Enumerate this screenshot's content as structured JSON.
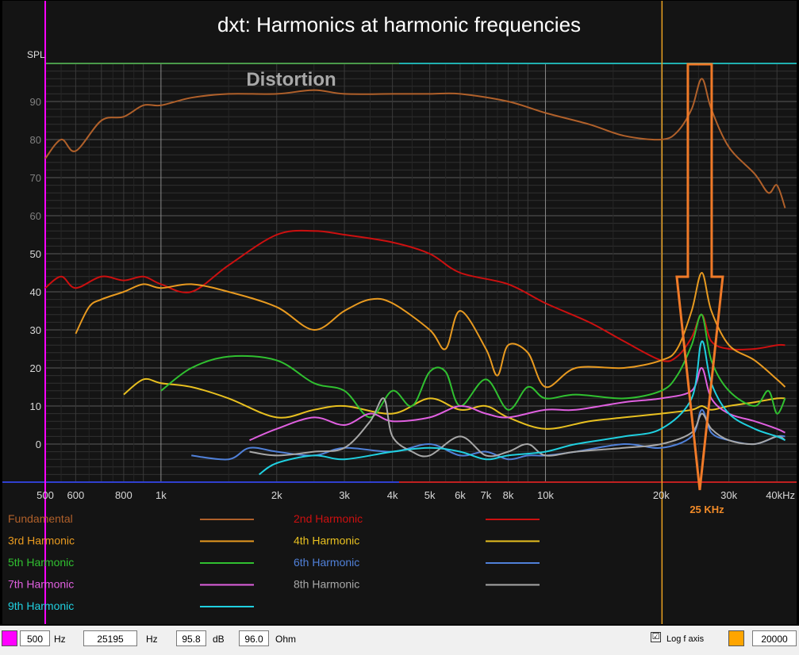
{
  "chart_data": {
    "type": "line",
    "title": "dxt: Harmonics at harmonic frequencies",
    "ylabel": "SPL",
    "xlabel": "",
    "annotation": "Distortion",
    "marker_annotation": "25 KHz",
    "x_scale": "log",
    "xlim": [
      500,
      45000
    ],
    "ylim": [
      -10,
      100
    ],
    "x_ticks": [
      {
        "v": 500,
        "label": "500"
      },
      {
        "v": 600,
        "label": "600"
      },
      {
        "v": 800,
        "label": "800"
      },
      {
        "v": 1000,
        "label": "1k"
      },
      {
        "v": 2000,
        "label": "2k"
      },
      {
        "v": 3000,
        "label": "3k"
      },
      {
        "v": 4000,
        "label": "4k"
      },
      {
        "v": 5000,
        "label": "5k"
      },
      {
        "v": 6000,
        "label": "6k"
      },
      {
        "v": 7000,
        "label": "7k"
      },
      {
        "v": 8000,
        "label": "8k"
      },
      {
        "v": 10000,
        "label": "10k"
      },
      {
        "v": 20000,
        "label": "20k"
      },
      {
        "v": 30000,
        "label": "30k"
      },
      {
        "v": 40000,
        "label": "40kHz"
      }
    ],
    "y_ticks": [
      0,
      10,
      20,
      30,
      40,
      50,
      60,
      70,
      80,
      90
    ],
    "cursor_x": 500,
    "cursor2_x": 20000,
    "series": [
      {
        "name": "Fundamental",
        "color": "#b0602a",
        "x": [
          500,
          550,
          600,
          700,
          800,
          900,
          1000,
          1200,
          1500,
          2000,
          2500,
          3000,
          4000,
          5000,
          6000,
          8000,
          10000,
          13000,
          16000,
          20000,
          22000,
          24000,
          25500,
          27000,
          30000,
          35000,
          38000,
          40000,
          42000
        ],
        "y": [
          75,
          80,
          77,
          85,
          86,
          89,
          89,
          91,
          92,
          92,
          93,
          92,
          92,
          92,
          92,
          90,
          87,
          84,
          81,
          80,
          82,
          88,
          96,
          88,
          78,
          71,
          66,
          68,
          62
        ]
      },
      {
        "name": "2nd Harmonic",
        "color": "#cc1010",
        "x": [
          500,
          550,
          600,
          700,
          800,
          900,
          1000,
          1200,
          1500,
          2000,
          2500,
          3000,
          4000,
          5000,
          6000,
          8000,
          10000,
          13000,
          16000,
          20000,
          22000,
          24000,
          25500,
          27000,
          30000,
          35000,
          40000,
          42000
        ],
        "y": [
          41,
          44,
          41,
          44,
          43,
          44,
          42,
          40,
          47,
          55,
          56,
          55,
          53,
          50,
          45,
          42,
          37,
          32,
          27,
          22,
          23,
          28,
          34,
          27,
          25,
          25,
          26,
          26
        ]
      },
      {
        "name": "3rd Harmonic",
        "color": "#e89a20",
        "x": [
          600,
          650,
          700,
          800,
          900,
          1000,
          1200,
          1500,
          2000,
          2500,
          3000,
          3500,
          4000,
          5000,
          5500,
          6000,
          7000,
          7500,
          8000,
          9000,
          10000,
          12000,
          16000,
          20000,
          22000,
          24000,
          25500,
          27000,
          30000,
          35000,
          40000,
          42000
        ],
        "y": [
          29,
          36,
          38,
          40,
          42,
          41,
          42,
          40,
          36,
          30,
          35,
          38,
          37,
          30,
          25,
          35,
          25,
          18,
          26,
          24,
          15,
          20,
          20,
          22,
          25,
          35,
          45,
          35,
          26,
          22,
          17,
          15
        ]
      },
      {
        "name": "4th Harmonic",
        "color": "#e8c020",
        "x": [
          800,
          900,
          1000,
          1200,
          1500,
          2000,
          2500,
          3000,
          4000,
          5000,
          6000,
          7000,
          8000,
          10000,
          13000,
          16000,
          20000,
          24000,
          25500,
          27000,
          30000,
          35000,
          40000,
          42000
        ],
        "y": [
          13,
          17,
          16,
          15,
          12,
          7,
          9,
          10,
          8,
          12,
          9,
          10,
          7,
          4,
          6,
          7,
          8,
          9,
          10,
          9,
          10,
          11,
          12,
          12
        ]
      },
      {
        "name": "5th Harmonic",
        "color": "#30c030",
        "x": [
          1000,
          1200,
          1500,
          2000,
          2500,
          3000,
          3500,
          4000,
          4500,
          5000,
          5500,
          6000,
          7000,
          8000,
          9000,
          10000,
          12000,
          16000,
          20000,
          22000,
          24000,
          25500,
          27000,
          30000,
          35000,
          38000,
          40000,
          42000
        ],
        "y": [
          14,
          20,
          23,
          22,
          16,
          14,
          7,
          14,
          10,
          19,
          19,
          10,
          17,
          9,
          15,
          12,
          13,
          12,
          14,
          18,
          26,
          34,
          22,
          14,
          10,
          14,
          8,
          12
        ]
      },
      {
        "name": "6th Harmonic",
        "color": "#5080d8",
        "x": [
          1200,
          1500,
          1700,
          2000,
          2500,
          3000,
          4000,
          5000,
          6000,
          7000,
          8000,
          9000,
          10000,
          12000,
          16000,
          20000,
          24000,
          25500,
          27000,
          30000,
          35000,
          40000,
          42000
        ],
        "y": [
          -3,
          -4,
          -1,
          -2,
          -3,
          -1,
          -2,
          0,
          -3,
          -2,
          -4,
          -3,
          -3,
          -2,
          0,
          -1,
          2,
          9,
          3,
          1,
          0,
          2,
          2
        ]
      },
      {
        "name": "7th Harmonic",
        "color": "#e060e0",
        "x": [
          1700,
          2000,
          2500,
          3000,
          3500,
          4000,
          5000,
          6000,
          7000,
          8000,
          10000,
          12000,
          16000,
          20000,
          24000,
          25500,
          27000,
          30000,
          35000,
          40000,
          42000
        ],
        "y": [
          1,
          4,
          7,
          5,
          8,
          6,
          7,
          10,
          8,
          7,
          9,
          9,
          11,
          12,
          14,
          20,
          12,
          8,
          6,
          4,
          3
        ]
      },
      {
        "name": "8th Harmonic",
        "color": "#a8a8a8",
        "x": [
          1700,
          2000,
          2500,
          3000,
          3500,
          3800,
          4000,
          4500,
          5000,
          6000,
          7000,
          8000,
          9000,
          10000,
          12000,
          16000,
          20000,
          24000,
          25500,
          27000,
          30000,
          35000,
          40000,
          42000
        ],
        "y": [
          -2,
          -3,
          -2,
          -1,
          6,
          12,
          2,
          -2,
          -3,
          2,
          -3,
          -2,
          0,
          -3,
          -2,
          -1,
          0,
          3,
          8,
          4,
          1,
          0,
          2,
          1
        ]
      },
      {
        "name": "9th Harmonic",
        "color": "#20d0e0",
        "x": [
          1800,
          2000,
          2500,
          3000,
          4000,
          5000,
          6000,
          7000,
          8000,
          10000,
          12000,
          16000,
          20000,
          24000,
          25500,
          27000,
          30000,
          35000,
          40000,
          42000
        ],
        "y": [
          -8,
          -5,
          -3,
          -4,
          -2,
          -1,
          -2,
          -4,
          -3,
          -2,
          0,
          2,
          4,
          12,
          27,
          16,
          8,
          4,
          2,
          1
        ]
      }
    ]
  },
  "bottom_bar": {
    "cursor_value": "500",
    "cursor_unit": "Hz",
    "freq_value": "25195",
    "freq_unit": "Hz",
    "db_value": "95.8",
    "db_unit": "dB",
    "ohm_value": "96.0",
    "ohm_unit": "Ohm",
    "cursor_color": "#ff00ff",
    "log_axis_label": "Log f axis",
    "log_axis_checked": "☑",
    "right_swatch_color": "#ffa500",
    "right_value": "20000"
  }
}
